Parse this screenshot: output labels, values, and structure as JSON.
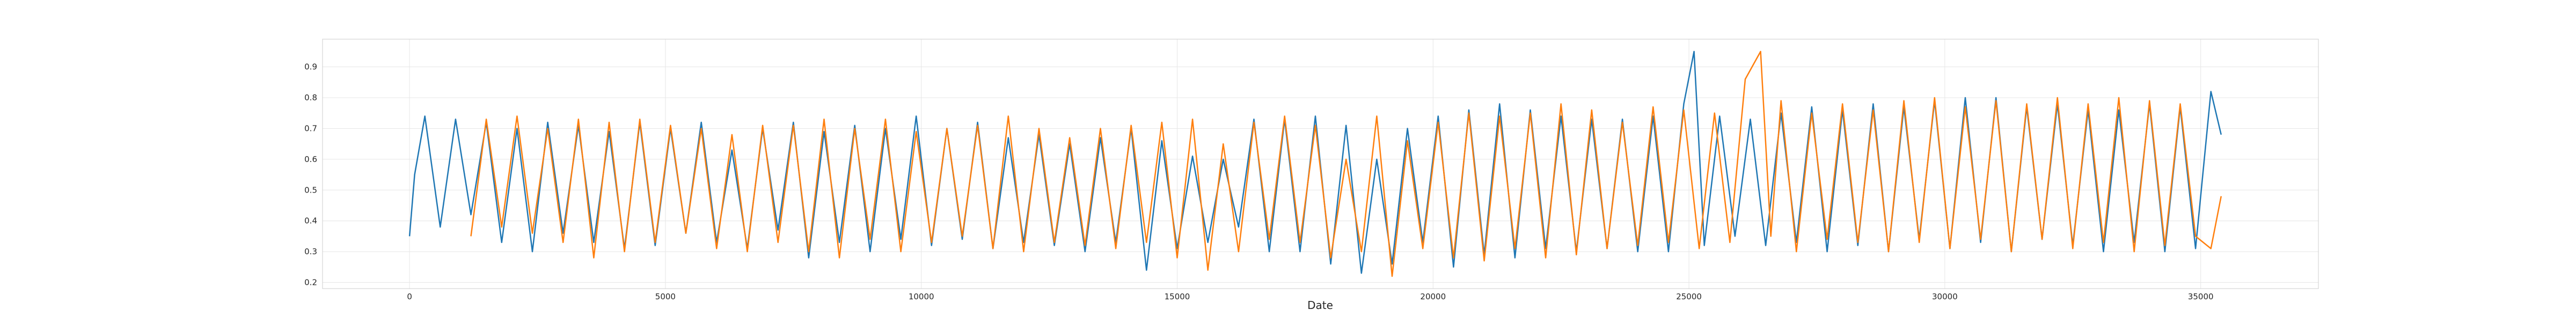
{
  "chart_data": {
    "type": "line",
    "title": "",
    "xlabel": "Date",
    "ylabel": "",
    "xlim": [
      -1700,
      37300
    ],
    "ylim": [
      0.18,
      0.99
    ],
    "x_ticks": [
      0,
      5000,
      10000,
      15000,
      20000,
      25000,
      30000,
      35000
    ],
    "x_tick_labels": [
      "0",
      "5000",
      "10000",
      "15000",
      "20000",
      "25000",
      "30000",
      "35000"
    ],
    "y_ticks": [
      0.2,
      0.3,
      0.4,
      0.5,
      0.6,
      0.7,
      0.8,
      0.9
    ],
    "y_tick_labels": [
      "0.2",
      "0.3",
      "0.4",
      "0.5",
      "0.6",
      "0.7",
      "0.8",
      "0.9"
    ],
    "grid": true,
    "legend": "none",
    "colors": [
      "#1f77b4",
      "#ff7f0e"
    ],
    "series": [
      {
        "color": "#1f77b4",
        "x": [
          0,
          100,
          300,
          600,
          900,
          1200,
          1500,
          1800,
          2100,
          2400,
          2700,
          3000,
          3300,
          3600,
          3900,
          4200,
          4500,
          4800,
          5100,
          5400,
          5700,
          6000,
          6300,
          6600,
          6900,
          7200,
          7500,
          7800,
          8100,
          8400,
          8700,
          9000,
          9300,
          9600,
          9900,
          10200,
          10500,
          10800,
          11100,
          11400,
          11700,
          12000,
          12300,
          12600,
          12900,
          13200,
          13500,
          13800,
          14100,
          14400,
          14700,
          15000,
          15300,
          15600,
          15900,
          16200,
          16500,
          16800,
          17100,
          17400,
          17700,
          18000,
          18300,
          18600,
          18900,
          19200,
          19500,
          19800,
          20100,
          20400,
          20700,
          21000,
          21300,
          21600,
          21900,
          22200,
          22500,
          22800,
          23100,
          23400,
          23700,
          24000,
          24300,
          24600,
          24900,
          25100,
          25300,
          25600,
          25900,
          26200,
          26500,
          26800,
          27100,
          27400,
          27700,
          28000,
          28300,
          28600,
          28900,
          29200,
          29500,
          29800,
          30100,
          30400,
          30700,
          31000,
          31300,
          31600,
          31900,
          32200,
          32500,
          32800,
          33100,
          33400,
          33700,
          34000,
          34300,
          34600,
          34900,
          35200,
          35400
        ],
        "y": [
          0.35,
          0.55,
          0.74,
          0.38,
          0.73,
          0.42,
          0.72,
          0.33,
          0.7,
          0.3,
          0.72,
          0.36,
          0.71,
          0.33,
          0.69,
          0.31,
          0.72,
          0.32,
          0.7,
          0.36,
          0.72,
          0.33,
          0.63,
          0.31,
          0.7,
          0.37,
          0.72,
          0.28,
          0.69,
          0.33,
          0.71,
          0.3,
          0.7,
          0.34,
          0.74,
          0.32,
          0.7,
          0.34,
          0.72,
          0.31,
          0.67,
          0.33,
          0.68,
          0.32,
          0.65,
          0.3,
          0.67,
          0.33,
          0.7,
          0.24,
          0.66,
          0.31,
          0.61,
          0.33,
          0.6,
          0.38,
          0.73,
          0.3,
          0.73,
          0.3,
          0.74,
          0.26,
          0.71,
          0.23,
          0.6,
          0.26,
          0.7,
          0.33,
          0.74,
          0.25,
          0.76,
          0.29,
          0.78,
          0.28,
          0.76,
          0.31,
          0.74,
          0.3,
          0.73,
          0.31,
          0.73,
          0.3,
          0.74,
          0.3,
          0.78,
          0.95,
          0.32,
          0.74,
          0.35,
          0.73,
          0.32,
          0.75,
          0.33,
          0.77,
          0.3,
          0.76,
          0.32,
          0.78,
          0.3,
          0.77,
          0.34,
          0.79,
          0.31,
          0.8,
          0.33,
          0.8,
          0.3,
          0.77,
          0.34,
          0.78,
          0.32,
          0.76,
          0.3,
          0.76,
          0.33,
          0.78,
          0.3,
          0.77,
          0.31,
          0.82,
          0.68
        ]
      },
      {
        "color": "#ff7f0e",
        "x": [
          1200,
          1500,
          1800,
          2100,
          2400,
          2700,
          3000,
          3300,
          3600,
          3900,
          4200,
          4500,
          4800,
          5100,
          5400,
          5700,
          6000,
          6300,
          6600,
          6900,
          7200,
          7500,
          7800,
          8100,
          8400,
          8700,
          9000,
          9300,
          9600,
          9900,
          10200,
          10500,
          10800,
          11100,
          11400,
          11700,
          12000,
          12300,
          12600,
          12900,
          13200,
          13500,
          13800,
          14100,
          14400,
          14700,
          15000,
          15300,
          15600,
          15900,
          16200,
          16500,
          16800,
          17100,
          17400,
          17700,
          18000,
          18300,
          18600,
          18900,
          19200,
          19500,
          19800,
          20100,
          20400,
          20700,
          21000,
          21300,
          21600,
          21900,
          22200,
          22500,
          22800,
          23100,
          23400,
          23700,
          24000,
          24300,
          24600,
          24900,
          25200,
          25500,
          25800,
          26100,
          26400,
          26600,
          26800,
          27100,
          27400,
          27700,
          28000,
          28300,
          28600,
          28900,
          29200,
          29500,
          29800,
          30100,
          30400,
          30700,
          31000,
          31300,
          31600,
          31900,
          32200,
          32500,
          32800,
          33100,
          33400,
          33700,
          34000,
          34300,
          34600,
          34900,
          35200,
          35400
        ],
        "y": [
          0.35,
          0.73,
          0.38,
          0.74,
          0.36,
          0.7,
          0.33,
          0.73,
          0.28,
          0.72,
          0.3,
          0.73,
          0.33,
          0.71,
          0.36,
          0.7,
          0.31,
          0.68,
          0.3,
          0.71,
          0.33,
          0.71,
          0.3,
          0.73,
          0.28,
          0.7,
          0.34,
          0.73,
          0.3,
          0.69,
          0.33,
          0.7,
          0.35,
          0.71,
          0.31,
          0.74,
          0.3,
          0.7,
          0.33,
          0.67,
          0.32,
          0.7,
          0.31,
          0.71,
          0.33,
          0.72,
          0.28,
          0.73,
          0.24,
          0.65,
          0.3,
          0.72,
          0.34,
          0.74,
          0.33,
          0.71,
          0.28,
          0.6,
          0.3,
          0.74,
          0.22,
          0.66,
          0.31,
          0.72,
          0.28,
          0.75,
          0.27,
          0.74,
          0.31,
          0.75,
          0.28,
          0.78,
          0.29,
          0.76,
          0.31,
          0.72,
          0.32,
          0.77,
          0.33,
          0.76,
          0.31,
          0.75,
          0.33,
          0.86,
          0.95,
          0.35,
          0.79,
          0.3,
          0.75,
          0.34,
          0.78,
          0.33,
          0.76,
          0.3,
          0.79,
          0.33,
          0.8,
          0.31,
          0.77,
          0.34,
          0.79,
          0.3,
          0.78,
          0.34,
          0.8,
          0.31,
          0.78,
          0.33,
          0.8,
          0.3,
          0.79,
          0.32,
          0.78,
          0.35,
          0.31,
          0.48
        ]
      }
    ]
  }
}
